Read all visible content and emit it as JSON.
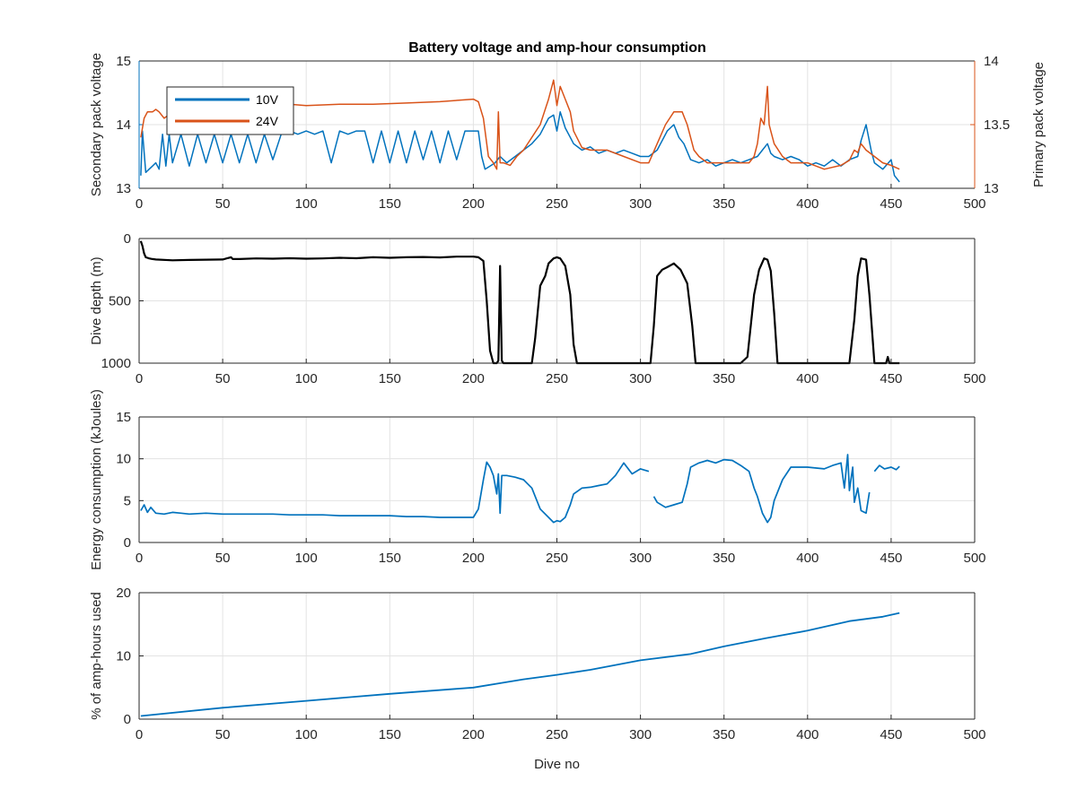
{
  "figure_title": "Battery voltage and amp-hour consumption",
  "colors": {
    "blue": "#0072bd",
    "orange": "#d95319",
    "black": "#000000",
    "grid": "#e3e3e3",
    "axis": "#262626"
  },
  "chart_data": [
    {
      "type": "line",
      "title": "Battery voltage and amp-hour consumption",
      "xlabel": "",
      "xlim": [
        0,
        500
      ],
      "xticks": [
        0,
        50,
        100,
        150,
        200,
        250,
        300,
        350,
        400,
        450,
        500
      ],
      "grid": true,
      "legend_position": "top-left",
      "left_axis": {
        "label": "Secondary pack voltage",
        "ylim": [
          13,
          15
        ],
        "ticks": [
          13,
          14,
          15
        ],
        "tick_labels": [
          "13",
          "14",
          "15"
        ],
        "color": "#0072bd"
      },
      "right_axis": {
        "label": "Primary pack voltage",
        "ylim": [
          13,
          14
        ],
        "ticks": [
          13,
          13.5,
          14
        ],
        "tick_labels": [
          "13",
          "13.5",
          "14"
        ],
        "color": "#d95319"
      },
      "series": [
        {
          "name": "10V",
          "axis": "left",
          "x": [
            1,
            2,
            4,
            6,
            8,
            10,
            12,
            14,
            16,
            18,
            20,
            25,
            30,
            35,
            40,
            45,
            50,
            55,
            60,
            65,
            70,
            75,
            80,
            85,
            90,
            95,
            100,
            105,
            110,
            115,
            120,
            125,
            130,
            135,
            140,
            145,
            150,
            155,
            160,
            165,
            170,
            175,
            180,
            185,
            190,
            195,
            200,
            203,
            205,
            207,
            210,
            213,
            216,
            220,
            225,
            230,
            235,
            240,
            245,
            248,
            250,
            252,
            255,
            258,
            260,
            265,
            270,
            275,
            280,
            285,
            290,
            295,
            300,
            305,
            310,
            313,
            316,
            320,
            323,
            326,
            330,
            335,
            340,
            345,
            350,
            355,
            360,
            365,
            370,
            373,
            376,
            378,
            380,
            385,
            390,
            395,
            400,
            405,
            410,
            415,
            420,
            425,
            430,
            432,
            435,
            438,
            440,
            445,
            450,
            452,
            455
          ],
          "values": [
            13.2,
            13.9,
            13.25,
            13.3,
            13.35,
            13.4,
            13.3,
            13.85,
            13.35,
            13.85,
            13.4,
            13.85,
            13.35,
            13.85,
            13.4,
            13.85,
            13.4,
            13.85,
            13.4,
            13.85,
            13.4,
            13.85,
            13.45,
            13.85,
            13.9,
            13.85,
            13.9,
            13.85,
            13.9,
            13.4,
            13.9,
            13.85,
            13.9,
            13.9,
            13.4,
            13.9,
            13.4,
            13.9,
            13.4,
            13.9,
            13.45,
            13.9,
            13.4,
            13.9,
            13.45,
            13.9,
            13.9,
            13.9,
            13.5,
            13.3,
            13.35,
            13.4,
            13.5,
            13.4,
            13.5,
            13.6,
            13.7,
            13.85,
            14.1,
            14.15,
            13.9,
            14.2,
            13.95,
            13.8,
            13.7,
            13.6,
            13.65,
            13.55,
            13.6,
            13.55,
            13.6,
            13.55,
            13.5,
            13.5,
            13.6,
            13.75,
            13.9,
            14.0,
            13.8,
            13.7,
            13.45,
            13.4,
            13.45,
            13.35,
            13.4,
            13.45,
            13.4,
            13.45,
            13.5,
            13.6,
            13.7,
            13.55,
            13.5,
            13.45,
            13.5,
            13.45,
            13.35,
            13.4,
            13.35,
            13.45,
            13.35,
            13.45,
            13.5,
            13.75,
            14.0,
            13.6,
            13.4,
            13.3,
            13.45,
            13.2,
            13.1
          ]
        },
        {
          "name": "24V",
          "axis": "right",
          "x": [
            1,
            3,
            5,
            8,
            10,
            12,
            15,
            20,
            30,
            40,
            50,
            60,
            70,
            80,
            90,
            100,
            120,
            140,
            160,
            180,
            200,
            203,
            206,
            209,
            212,
            214,
            215,
            216,
            218,
            222,
            226,
            230,
            235,
            240,
            245,
            248,
            250,
            252,
            255,
            258,
            260,
            265,
            270,
            280,
            290,
            300,
            305,
            310,
            315,
            320,
            325,
            328,
            332,
            335,
            340,
            350,
            360,
            365,
            368,
            370,
            372,
            374,
            376,
            377,
            378,
            380,
            385,
            390,
            400,
            410,
            420,
            425,
            428,
            430,
            432,
            435,
            440,
            445,
            450,
            455
          ],
          "values": [
            13.4,
            13.55,
            13.6,
            13.6,
            13.62,
            13.6,
            13.55,
            13.6,
            13.62,
            13.64,
            13.64,
            13.65,
            13.64,
            13.65,
            13.66,
            13.65,
            13.66,
            13.66,
            13.67,
            13.68,
            13.7,
            13.68,
            13.55,
            13.25,
            13.2,
            13.15,
            13.6,
            13.2,
            13.2,
            13.18,
            13.25,
            13.3,
            13.4,
            13.5,
            13.7,
            13.85,
            13.65,
            13.8,
            13.7,
            13.6,
            13.45,
            13.32,
            13.3,
            13.3,
            13.25,
            13.2,
            13.2,
            13.35,
            13.5,
            13.6,
            13.6,
            13.5,
            13.3,
            13.25,
            13.2,
            13.2,
            13.2,
            13.2,
            13.25,
            13.35,
            13.55,
            13.5,
            13.8,
            13.5,
            13.45,
            13.35,
            13.25,
            13.2,
            13.2,
            13.15,
            13.18,
            13.22,
            13.3,
            13.28,
            13.35,
            13.3,
            13.25,
            13.2,
            13.18,
            13.15
          ]
        }
      ]
    },
    {
      "type": "line",
      "xlabel": "",
      "ylabel": "Dive depth (m)",
      "xlim": [
        0,
        500
      ],
      "xticks": [
        0,
        50,
        100,
        150,
        200,
        250,
        300,
        350,
        400,
        450,
        500
      ],
      "ylim": [
        0,
        1000
      ],
      "y_reversed": true,
      "yticks": [
        0,
        500,
        1000
      ],
      "ytick_labels": [
        "0",
        "500",
        "1000"
      ],
      "grid": true,
      "series": [
        {
          "color": "#000000",
          "x": [
            1,
            2,
            3,
            4,
            5,
            6,
            8,
            10,
            20,
            30,
            40,
            50,
            55,
            56,
            57,
            60,
            70,
            80,
            90,
            100,
            110,
            120,
            130,
            140,
            150,
            160,
            170,
            180,
            190,
            200,
            203,
            206,
            208,
            210,
            212,
            213,
            214,
            215,
            216,
            217,
            218,
            219,
            220,
            225,
            230,
            235,
            237,
            240,
            243,
            245,
            248,
            250,
            252,
            255,
            258,
            260,
            262,
            265,
            270,
            280,
            290,
            300,
            303,
            306,
            308,
            310,
            313,
            316,
            320,
            324,
            328,
            331,
            333,
            335,
            340,
            350,
            360,
            364,
            368,
            371,
            374,
            376,
            378,
            380,
            382,
            385,
            390,
            400,
            410,
            420,
            425,
            428,
            430,
            432,
            435,
            437,
            440,
            445,
            447,
            448,
            449,
            450,
            452,
            455
          ],
          "values": [
            20,
            60,
            120,
            150,
            155,
            160,
            165,
            168,
            175,
            172,
            170,
            168,
            150,
            165,
            165,
            165,
            160,
            162,
            158,
            162,
            160,
            155,
            158,
            150,
            155,
            150,
            148,
            152,
            145,
            145,
            150,
            180,
            500,
            900,
            1000,
            1000,
            1000,
            980,
            220,
            980,
            1000,
            1000,
            1000,
            1000,
            1000,
            1000,
            800,
            380,
            300,
            200,
            160,
            150,
            160,
            220,
            450,
            850,
            1000,
            1000,
            1000,
            1000,
            1000,
            1000,
            1000,
            1000,
            700,
            300,
            250,
            230,
            200,
            250,
            360,
            700,
            1000,
            1000,
            1000,
            1000,
            1000,
            950,
            450,
            250,
            160,
            170,
            260,
            600,
            1000,
            1000,
            1000,
            1000,
            1000,
            1000,
            1000,
            650,
            300,
            160,
            170,
            450,
            1000,
            1000,
            1000,
            950,
            1000,
            1000,
            1000,
            1000
          ]
        }
      ]
    },
    {
      "type": "line",
      "xlabel": "",
      "ylabel": "Energy consumption (kJoules)",
      "xlim": [
        0,
        500
      ],
      "xticks": [
        0,
        50,
        100,
        150,
        200,
        250,
        300,
        350,
        400,
        450,
        500
      ],
      "ylim": [
        0,
        15
      ],
      "yticks": [
        0,
        5,
        10,
        15
      ],
      "ytick_labels": [
        "0",
        "5",
        "10",
        "15"
      ],
      "grid": true,
      "series": [
        {
          "color": "#0072bd",
          "segments": [
            {
              "x": [
                1,
                3,
                5,
                7,
                10,
                15,
                20,
                25,
                30,
                40,
                50,
                60,
                70,
                80,
                90,
                100,
                110,
                120,
                130,
                140,
                150,
                160,
                170,
                180,
                190,
                200,
                203,
                206,
                208,
                210,
                212,
                214,
                215,
                216,
                217,
                220,
                225,
                230,
                235,
                240,
                245,
                248,
                250,
                252,
                255,
                258,
                260,
                265,
                270,
                275,
                280,
                285,
                290,
                295,
                300,
                305
              ],
              "values": [
                3.8,
                4.5,
                3.6,
                4.2,
                3.5,
                3.4,
                3.6,
                3.5,
                3.4,
                3.5,
                3.4,
                3.4,
                3.4,
                3.4,
                3.3,
                3.3,
                3.3,
                3.2,
                3.2,
                3.2,
                3.2,
                3.1,
                3.1,
                3.0,
                3.0,
                3.0,
                4.0,
                7.5,
                9.6,
                9.0,
                8.0,
                5.8,
                8.2,
                3.5,
                8.0,
                8.0,
                7.8,
                7.5,
                6.5,
                4.0,
                3.0,
                2.4,
                2.6,
                2.5,
                3.0,
                4.5,
                5.8,
                6.5,
                6.6,
                6.8,
                7.0,
                8.0,
                9.5,
                8.2,
                8.8,
                8.5
              ]
            },
            {
              "x": [
                308,
                310,
                315,
                320,
                325,
                328,
                330,
                335,
                340,
                345,
                350,
                355,
                360,
                365,
                368,
                370,
                373,
                376,
                378,
                380,
                385,
                390,
                400,
                410,
                415,
                420,
                422,
                424,
                425,
                427,
                428,
                430,
                432,
                435,
                437
              ],
              "values": [
                5.5,
                4.8,
                4.2,
                4.5,
                4.8,
                7.0,
                9.0,
                9.5,
                9.8,
                9.5,
                9.9,
                9.8,
                9.2,
                8.5,
                6.5,
                5.5,
                3.5,
                2.4,
                3.0,
                5.0,
                7.5,
                9.0,
                9.0,
                8.8,
                9.2,
                9.5,
                6.5,
                10.5,
                6.2,
                9.0,
                4.8,
                6.5,
                3.8,
                3.5,
                6.0
              ]
            },
            {
              "x": [
                440,
                443,
                446,
                450,
                453,
                455
              ],
              "values": [
                8.5,
                9.2,
                8.8,
                9.0,
                8.7,
                9.1
              ]
            }
          ]
        }
      ]
    },
    {
      "type": "line",
      "xlabel": "Dive no",
      "ylabel": "% of amp-hours used",
      "xlim": [
        0,
        500
      ],
      "xticks": [
        0,
        50,
        100,
        150,
        200,
        250,
        300,
        350,
        400,
        450,
        500
      ],
      "ylim": [
        0,
        20
      ],
      "yticks": [
        0,
        10,
        20
      ],
      "ytick_labels": [
        "0",
        "10",
        "20"
      ],
      "grid": true,
      "series": [
        {
          "color": "#0072bd",
          "x": [
            1,
            50,
            100,
            150,
            200,
            230,
            250,
            270,
            300,
            330,
            350,
            375,
            400,
            425,
            445,
            455
          ],
          "values": [
            0.5,
            1.8,
            2.9,
            4.0,
            5.0,
            6.3,
            7.0,
            7.8,
            9.3,
            10.3,
            11.5,
            12.8,
            14.0,
            15.5,
            16.2,
            16.8
          ]
        }
      ]
    }
  ]
}
